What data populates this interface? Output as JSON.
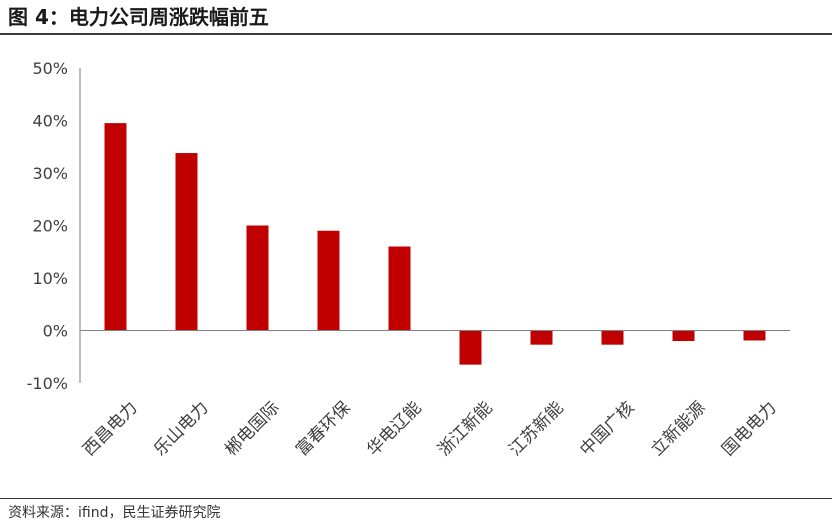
{
  "header": {
    "title": "图 4：电力公司周涨跌幅前五"
  },
  "footer": {
    "source": "资料来源：ifind，民生证券研究院"
  },
  "colors": {
    "bar": "#C00000",
    "axis": "#7F7F7F",
    "text": "#404040"
  },
  "chart_data": {
    "type": "bar",
    "title": "",
    "xlabel": "",
    "ylabel": "",
    "categories": [
      "西昌电力",
      "乐山电力",
      "郴电国际",
      "富春环保",
      "华电辽能",
      "浙江新能",
      "江苏新能",
      "中国广核",
      "立新能源",
      "国电电力"
    ],
    "values": [
      0.395,
      0.338,
      0.2,
      0.19,
      0.16,
      -0.065,
      -0.027,
      -0.027,
      -0.02,
      -0.019
    ],
    "ylim": [
      -0.1,
      0.5
    ],
    "yticks": [
      -0.1,
      0.0,
      0.1,
      0.2,
      0.3,
      0.4,
      0.5
    ],
    "ytick_labels": [
      "-10%",
      "0%",
      "10%",
      "20%",
      "30%",
      "40%",
      "50%"
    ],
    "grid": false,
    "legend": "none"
  }
}
